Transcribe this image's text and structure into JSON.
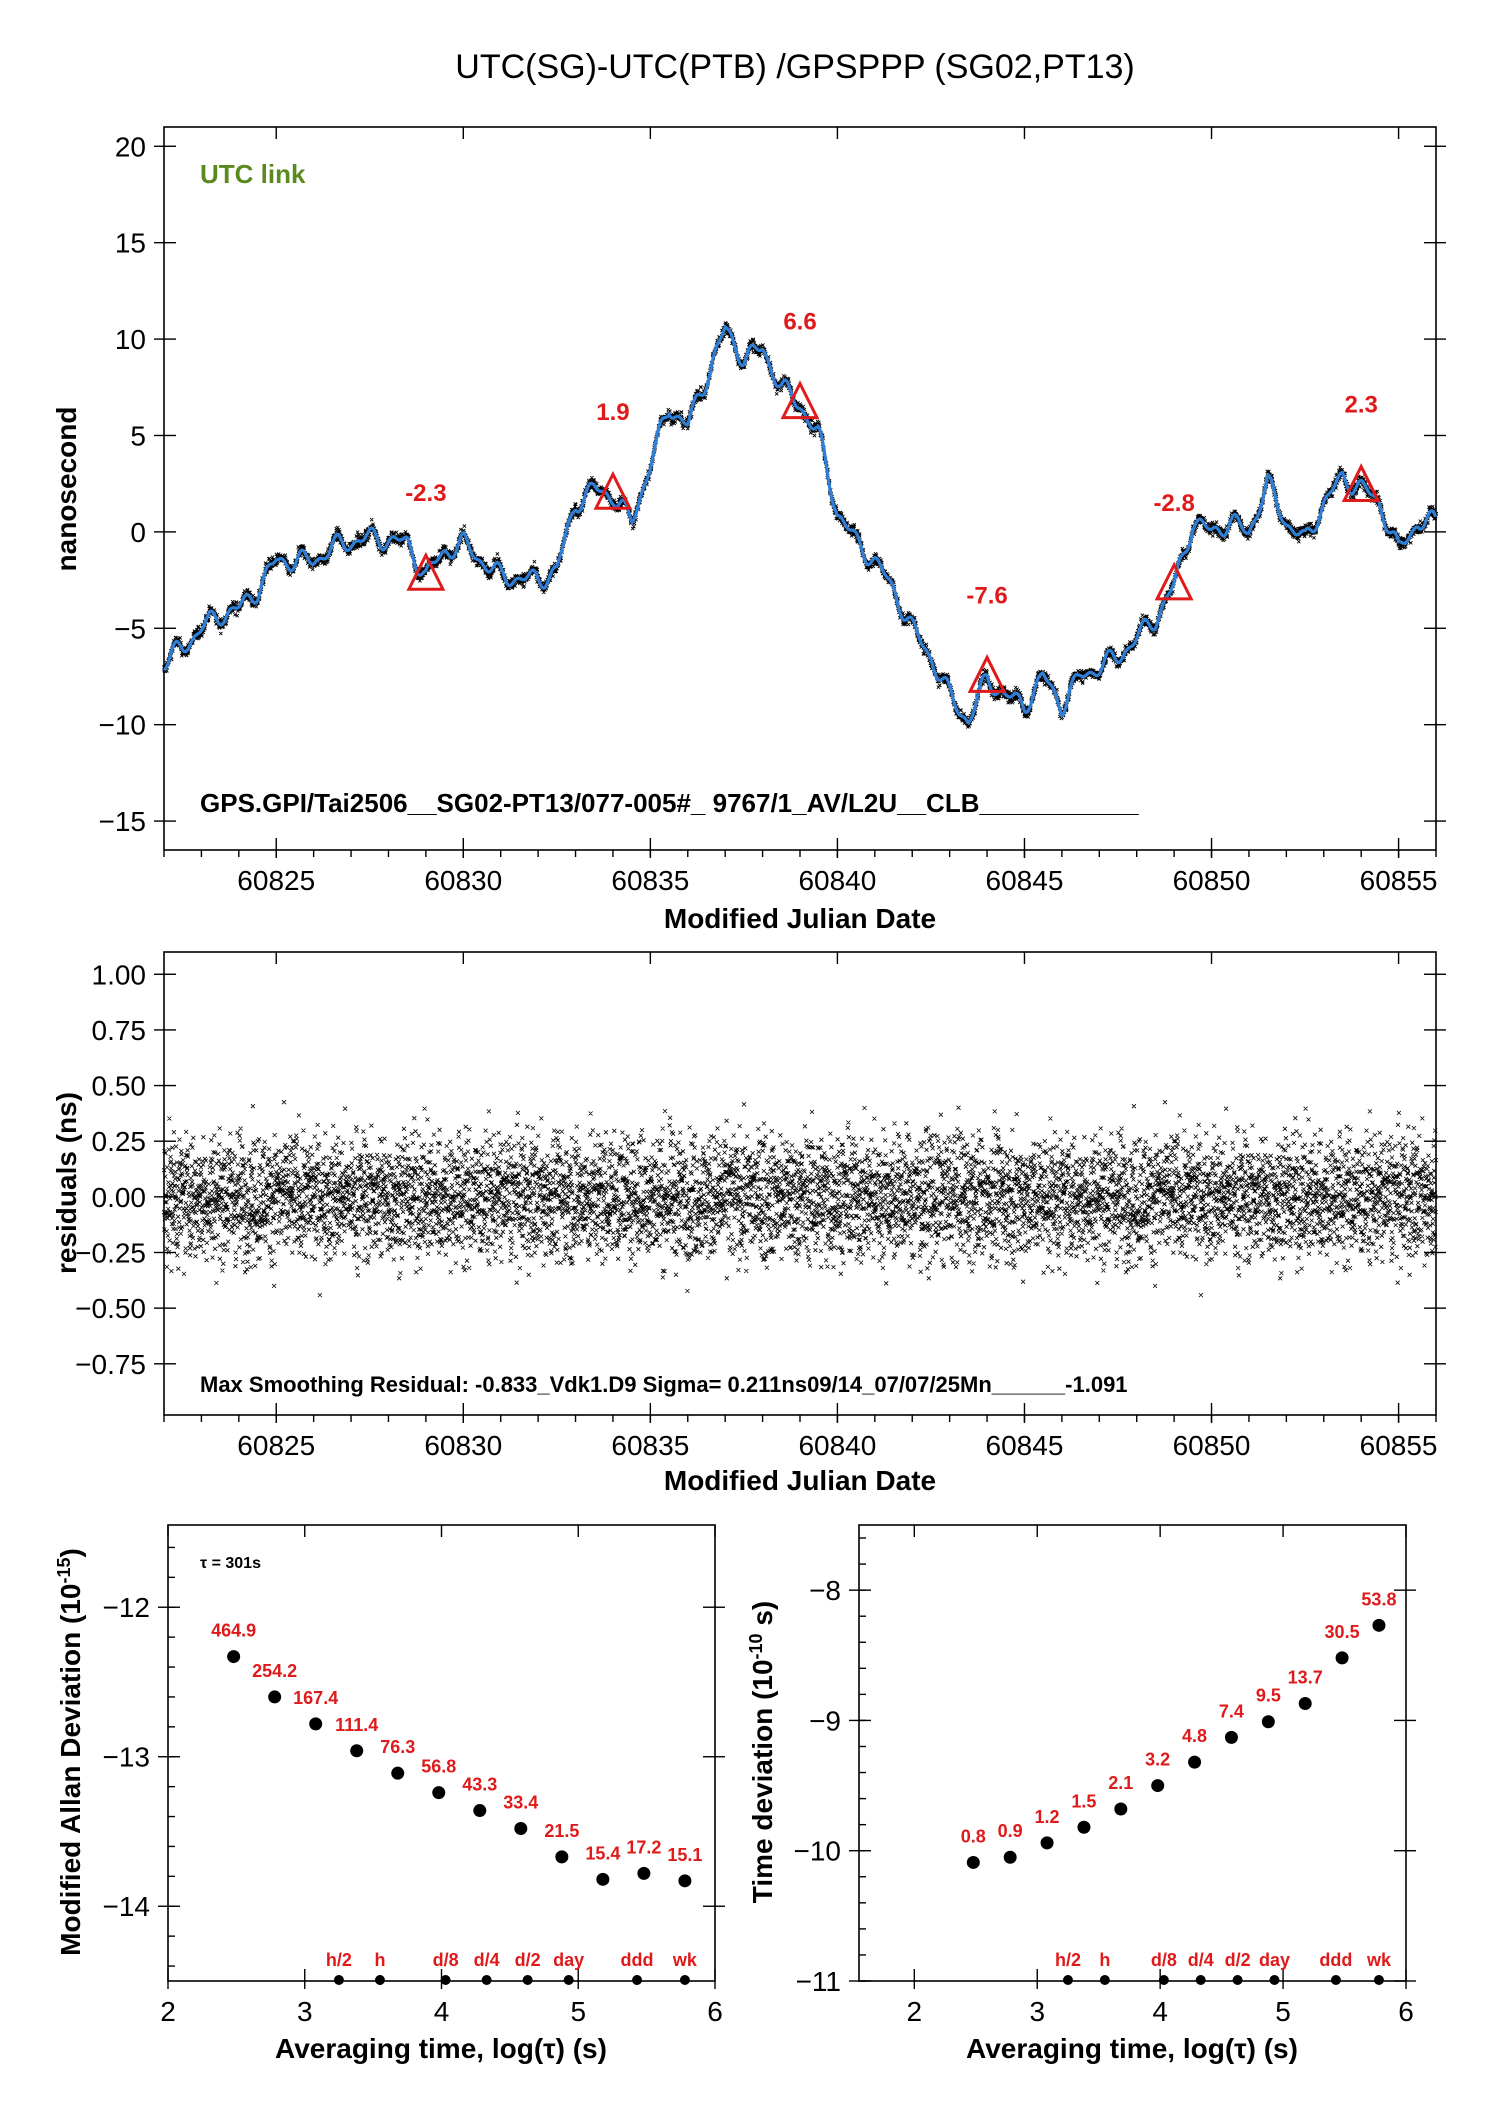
{
  "figure_title": "UTC(SG)-UTC(PTB)  /GPSPPP  (SG02,PT13)",
  "colors": {
    "accent_blue": "#2f7fd6",
    "marker_red": "#e01a1a",
    "link_green": "#5a8a1e",
    "text_black": "#000000"
  },
  "chart_data": [
    {
      "type": "line",
      "xlabel": "Modified Julian Date",
      "ylabel": "nanosecond",
      "xlim": [
        60822,
        60856
      ],
      "ylim": [
        -16.5,
        21
      ],
      "xticks": [
        60825,
        60830,
        60835,
        60840,
        60845,
        60850,
        60855
      ],
      "yticks": [
        -15,
        -10,
        -5,
        0,
        5,
        10,
        15,
        20
      ],
      "ytick_labels": [
        "−15",
        "−10",
        "−5",
        "0",
        "5",
        "10",
        "15",
        "20"
      ],
      "corner_label": "UTC link",
      "footer_label": "GPS.GPI/Tai2506__SG02-PT13/077-005#_  9767/1_AV/L2U__CLB___________",
      "series": [
        {
          "x": [
            60822.0,
            60822.5,
            60823.0,
            60823.5,
            60824.0,
            60824.5,
            60825.0,
            60825.5,
            60826.0,
            60826.5,
            60827.0,
            60827.5,
            60828.0,
            60828.5,
            60829.0,
            60829.5,
            60830.0,
            60830.5,
            60831.0,
            60831.5,
            60832.0,
            60832.5,
            60833.0,
            60833.5,
            60834.0,
            60834.5,
            60835.0,
            60835.5,
            60836.0,
            60836.5,
            60837.0,
            60837.5,
            60838.0,
            60838.5,
            60839.0,
            60839.5,
            60840.0,
            60840.5,
            60841.0,
            60841.5,
            60842.0,
            60842.5,
            60843.0,
            60843.5,
            60844.0,
            60844.5,
            60845.0,
            60845.5,
            60846.0,
            60846.5,
            60847.0,
            60847.5,
            60848.0,
            60848.5,
            60849.0,
            60849.5,
            60850.0,
            60850.5,
            60851.0,
            60851.5,
            60852.0,
            60852.5,
            60853.0,
            60853.5,
            60854.0,
            60854.5,
            60855.0,
            60855.5,
            60856.0
          ],
          "y": [
            -6.8,
            -6.0,
            -5.0,
            -4.3,
            -4.0,
            -3.0,
            -1.5,
            -1.5,
            -1.5,
            -0.8,
            -0.5,
            -0.3,
            -0.4,
            -0.6,
            -2.3,
            -1.0,
            -0.6,
            -1.5,
            -2.3,
            -2.4,
            -2.5,
            -2.0,
            1.5,
            2.2,
            1.9,
            0.5,
            3.5,
            6.5,
            5.5,
            8.0,
            10.5,
            9.0,
            9.5,
            7.5,
            6.6,
            5.0,
            1.0,
            -0.5,
            -1.5,
            -3.0,
            -5.0,
            -6.5,
            -8.5,
            -9.8,
            -7.6,
            -8.5,
            -9.0,
            -7.5,
            -9.0,
            -7.5,
            -7.0,
            -6.5,
            -5.5,
            -4.5,
            -2.8,
            0.5,
            0.0,
            0.5,
            0.0,
            2.5,
            0.5,
            -0.5,
            1.5,
            2.8,
            2.3,
            1.5,
            -1.0,
            0.5,
            0.5
          ]
        }
      ],
      "markers": [
        {
          "x": 60829.0,
          "y": -2.3,
          "label": "-2.3"
        },
        {
          "x": 60834.0,
          "y": 1.9,
          "label": "1.9"
        },
        {
          "x": 60839.0,
          "y": 6.6,
          "label": "6.6"
        },
        {
          "x": 60844.0,
          "y": -7.6,
          "label": "-7.6"
        },
        {
          "x": 60849.0,
          "y": -2.8,
          "label": "-2.8"
        },
        {
          "x": 60854.0,
          "y": 2.3,
          "label": "2.3"
        }
      ]
    },
    {
      "type": "scatter",
      "xlabel": "Modified Julian Date",
      "ylabel": "residuals (ns)",
      "xlim": [
        60822,
        60856
      ],
      "ylim": [
        -0.98,
        1.1
      ],
      "xticks": [
        60825,
        60830,
        60835,
        60840,
        60845,
        60850,
        60855
      ],
      "yticks": [
        -0.75,
        -0.5,
        -0.25,
        0.0,
        0.25,
        0.5,
        0.75,
        1.0
      ],
      "ytick_labels": [
        "−0.75",
        "−0.50",
        "−0.25",
        "0.00",
        "0.25",
        "0.50",
        "0.75",
        "1.00"
      ],
      "footer_label": "Max Smoothing Residual: -0.833_Vdk1.D9  Sigma= 0.211ns09/14_07/07/25Mn______-1.091",
      "sigma": 0.211,
      "max_residual": -0.833
    },
    {
      "type": "scatter",
      "xlabel": "Averaging time, log(τ) (s)",
      "ylabel": "Modified Allan Deviation (10",
      "ylabel_exp": "-15",
      "ylabel_close": ")",
      "xlim": [
        2,
        6
      ],
      "ylim": [
        -14.5,
        -11.45
      ],
      "xticks": [
        2,
        3,
        4,
        5,
        6
      ],
      "yticks": [
        -14,
        -13,
        -12
      ],
      "ytick_labels": [
        "−14",
        "−13",
        "−12"
      ],
      "tau_note": "τ = 301s",
      "x": [
        2.48,
        2.78,
        3.08,
        3.38,
        3.68,
        3.98,
        4.28,
        4.58,
        4.88,
        5.18,
        5.48,
        5.78
      ],
      "y": [
        -12.33,
        -12.6,
        -12.78,
        -12.96,
        -13.11,
        -13.24,
        -13.36,
        -13.48,
        -13.67,
        -13.82,
        -13.78,
        -13.83
      ],
      "labels": [
        "464.9",
        "254.2",
        "167.4",
        "111.4",
        "76.3",
        "56.8",
        "43.3",
        "33.4",
        "21.5",
        "15.4",
        "17.2",
        "15.1"
      ],
      "period_x": [
        3.25,
        3.55,
        4.03,
        4.33,
        4.63,
        4.93,
        5.43,
        5.78
      ],
      "period_labels": [
        "h/2",
        "h",
        "d/8",
        "d/4",
        "d/2",
        "day",
        "ddd",
        "wk"
      ]
    },
    {
      "type": "scatter",
      "xlabel": "Averaging time, log(τ) (s)",
      "ylabel": "Time deviation (10",
      "ylabel_exp": "-10",
      "ylabel_close": " s)",
      "xlim": [
        1.55,
        6
      ],
      "ylim": [
        -11,
        -7.5
      ],
      "xticks": [
        2,
        3,
        4,
        5,
        6
      ],
      "yticks": [
        -11,
        -10,
        -9,
        -8
      ],
      "ytick_labels": [
        "−11",
        "−10",
        "−9",
        "−8"
      ],
      "x": [
        2.48,
        2.78,
        3.08,
        3.38,
        3.68,
        3.98,
        4.28,
        4.58,
        4.88,
        5.18,
        5.48,
        5.78
      ],
      "y": [
        -10.09,
        -10.05,
        -9.94,
        -9.82,
        -9.68,
        -9.5,
        -9.32,
        -9.13,
        -9.01,
        -8.87,
        -8.52,
        -8.27
      ],
      "labels": [
        "0.8",
        "0.9",
        "1.2",
        "1.5",
        "2.1",
        "3.2",
        "4.8",
        "7.4",
        "9.5",
        "13.7",
        "30.5",
        "53.8"
      ],
      "period_x": [
        3.25,
        3.55,
        4.03,
        4.33,
        4.63,
        4.93,
        5.43,
        5.78
      ],
      "period_labels": [
        "h/2",
        "h",
        "d/8",
        "d/4",
        "d/2",
        "day",
        "ddd",
        "wk"
      ]
    }
  ]
}
